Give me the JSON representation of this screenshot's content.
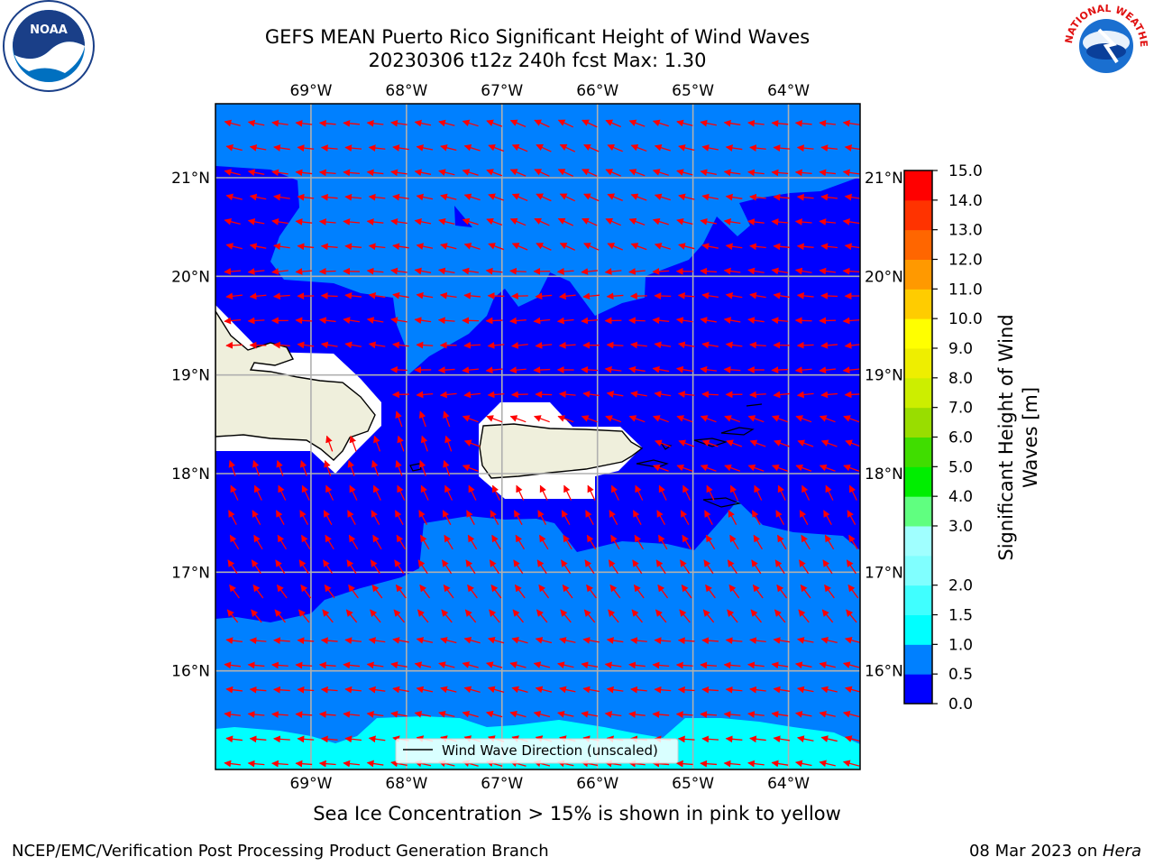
{
  "title_line1": "GEFS MEAN Puerto Rico Significant Height of Wind Waves",
  "title_line2": "20230306 t12z 240h fcst   Max: 1.30",
  "subtitle": "Sea Ice Concentration > 15% is shown in pink to yellow",
  "footer_left": "NCEP/EMC/Verification Post Processing Product Generation Branch",
  "footer_right_date": "08 Mar 2023 on ",
  "footer_right_host": "Hera",
  "legend_label": "Wind Wave Direction (unscaled)",
  "logos": {
    "left": "NOAA",
    "right": "NATIONAL WEATHER SERVICE"
  },
  "map": {
    "lon_ticks": [
      "69°W",
      "68°W",
      "67°W",
      "66°W",
      "65°W",
      "64°W"
    ],
    "lat_ticks": [
      "21°N",
      "20°N",
      "19°N",
      "18°N",
      "17°N",
      "16°N"
    ],
    "lon_range": [
      -70.0,
      -63.25
    ],
    "lat_range": [
      15.0,
      21.75
    ],
    "arrow_color": "#ff0000",
    "land_color": "#efefdc",
    "grid_color": "#b0b0b0"
  },
  "colorbar": {
    "title_line1": "Significant Height of Wind",
    "title_line2": "Waves [m]",
    "levels": [
      "0.0",
      "0.5",
      "1.0",
      "1.5",
      "2.0",
      "2.5",
      "3.0",
      "4.0",
      "5.0",
      "6.0",
      "7.0",
      "8.0",
      "9.0",
      "10.0",
      "11.0",
      "12.0",
      "13.0",
      "14.0",
      "15.0"
    ],
    "label_levels": [
      "0.0",
      "0.5",
      "1.0",
      "1.5",
      "2.0",
      "3.0",
      "4.0",
      "5.0",
      "6.0",
      "7.0",
      "8.0",
      "9.0",
      "10.0",
      "11.0",
      "12.0",
      "13.0",
      "14.0",
      "15.0"
    ],
    "colors": [
      "#0000ff",
      "#0080ff",
      "#00ffff",
      "#40ffff",
      "#80ffff",
      "#a0ffff",
      "#60ff80",
      "#00ee00",
      "#40dd00",
      "#99dd00",
      "#ccee00",
      "#eeee00",
      "#ffff00",
      "#ffcc00",
      "#ff9900",
      "#ff6600",
      "#ff3300",
      "#ff0000"
    ]
  }
}
